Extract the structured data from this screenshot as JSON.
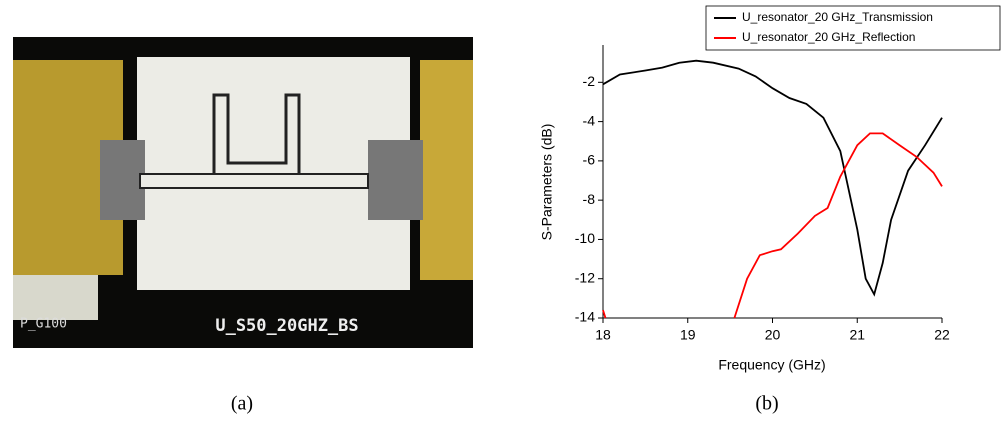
{
  "panel_a": {
    "caption": "(a)",
    "chip_labels": [
      "P_G100",
      "U_S50_20GHZ_BS"
    ]
  },
  "chart_data": {
    "type": "line",
    "caption": "(b)",
    "x_label": "Frequency (GHz)",
    "y_label": "S-Parameters (dB)",
    "xlim": [
      18,
      22
    ],
    "xticks": [
      18,
      19,
      20,
      21,
      22
    ],
    "ylim": [
      -14,
      -0.1
    ],
    "yticks": [
      -14,
      -12,
      -10,
      -8,
      -6,
      -4,
      -2
    ],
    "legend": "top-right",
    "series": [
      {
        "name": "U_resonator_20 GHz_Transmission",
        "color": "#000000",
        "x": [
          18.0,
          18.2,
          18.5,
          18.7,
          18.9,
          19.1,
          19.3,
          19.6,
          19.8,
          20.0,
          20.2,
          20.4,
          20.6,
          20.8,
          21.0,
          21.1,
          21.2,
          21.3,
          21.4,
          21.6,
          21.8,
          22.0
        ],
        "values": [
          -2.1,
          -1.6,
          -1.4,
          -1.25,
          -1.0,
          -0.9,
          -1.0,
          -1.3,
          -1.7,
          -2.3,
          -2.8,
          -3.1,
          -3.8,
          -5.5,
          -9.5,
          -12.0,
          -12.8,
          -11.2,
          -9.0,
          -6.5,
          -5.2,
          -3.8
        ]
      },
      {
        "name": "U_resonator_20 GHz_Reflection",
        "color": "#ff0000",
        "x": [
          18.0,
          18.03,
          19.0,
          19.55,
          19.7,
          19.85,
          20.0,
          20.1,
          20.3,
          20.5,
          20.65,
          20.8,
          21.0,
          21.15,
          21.3,
          21.5,
          21.7,
          21.9,
          22.0
        ],
        "values": [
          -13.6,
          -14.0,
          null,
          -14.0,
          -12.0,
          -10.8,
          -10.6,
          -10.5,
          -9.7,
          -8.8,
          -8.4,
          -6.8,
          -5.2,
          -4.6,
          -4.6,
          -5.2,
          -5.8,
          -6.6,
          -7.3
        ]
      }
    ]
  }
}
